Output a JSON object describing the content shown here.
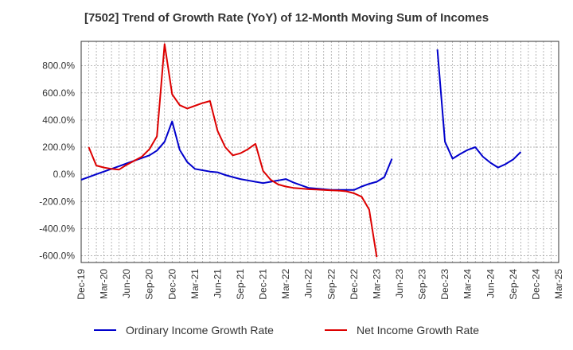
{
  "chart_data": {
    "type": "line",
    "title": "[7502]  Trend of Growth Rate (YoY) of 12-Month Moving Sum of Incomes",
    "ylim": [
      -650,
      980
    ],
    "yticks": [
      -600,
      -400,
      -200,
      0,
      200,
      400,
      600,
      800
    ],
    "ytick_labels": [
      "-600.0%",
      "-400.0%",
      "-200.0%",
      "0.0%",
      "200.0%",
      "400.0%",
      "600.0%",
      "800.0%"
    ],
    "xtick_labels": [
      "Dec-19",
      "Mar-20",
      "Jun-20",
      "Sep-20",
      "Dec-20",
      "Mar-21",
      "Jun-21",
      "Sep-21",
      "Dec-21",
      "Mar-22",
      "Jun-22",
      "Sep-22",
      "Dec-22",
      "Mar-23",
      "Jun-23",
      "Sep-23",
      "Dec-23",
      "Mar-24",
      "Jun-24",
      "Sep-24",
      "Dec-24",
      "Mar-25"
    ],
    "grid": true,
    "legend_position": "bottom",
    "series": [
      {
        "name": "Ordinary Income Growth Rate",
        "color": "#0000cc",
        "points": [
          [
            "Dec-19",
            -40
          ],
          [
            "Jan-20",
            -20
          ],
          [
            "Feb-20",
            0
          ],
          [
            "Mar-20",
            20
          ],
          [
            "Apr-20",
            40
          ],
          [
            "May-20",
            60
          ],
          [
            "Jun-20",
            80
          ],
          [
            "Jul-20",
            100
          ],
          [
            "Aug-20",
            120
          ],
          [
            "Sep-20",
            140
          ],
          [
            "Oct-20",
            175
          ],
          [
            "Nov-20",
            240
          ],
          [
            "Dec-20",
            390
          ],
          [
            "Jan-21",
            180
          ],
          [
            "Feb-21",
            90
          ],
          [
            "Mar-21",
            40
          ],
          [
            "Apr-21",
            30
          ],
          [
            "May-21",
            20
          ],
          [
            "Jun-21",
            15
          ],
          [
            "Jul-21",
            -5
          ],
          [
            "Aug-21",
            -20
          ],
          [
            "Sep-21",
            -35
          ],
          [
            "Oct-21",
            -45
          ],
          [
            "Nov-21",
            -55
          ],
          [
            "Dec-21",
            -65
          ],
          [
            "Jan-22",
            -55
          ],
          [
            "Feb-22",
            -45
          ],
          [
            "Mar-22",
            -35
          ],
          [
            "Apr-22",
            -60
          ],
          [
            "May-22",
            -80
          ],
          [
            "Jun-22",
            -100
          ],
          [
            "Jul-22",
            -105
          ],
          [
            "Aug-22",
            -110
          ],
          [
            "Sep-22",
            -115
          ],
          [
            "Oct-22",
            -115
          ],
          [
            "Nov-22",
            -115
          ],
          [
            "Dec-22",
            -115
          ],
          [
            "Jan-23",
            -90
          ],
          [
            "Feb-23",
            -70
          ],
          [
            "Mar-23",
            -55
          ],
          [
            "Apr-23",
            -20
          ],
          [
            "May-23",
            115
          ],
          [
            "Nov-23",
            920
          ],
          [
            "Dec-23",
            240
          ],
          [
            "Jan-24",
            115
          ],
          [
            "Feb-24",
            150
          ],
          [
            "Mar-24",
            180
          ],
          [
            "Apr-24",
            200
          ],
          [
            "May-24",
            130
          ],
          [
            "Jun-24",
            85
          ],
          [
            "Jul-24",
            50
          ],
          [
            "Aug-24",
            75
          ],
          [
            "Sep-24",
            110
          ],
          [
            "Oct-24",
            165
          ]
        ]
      },
      {
        "name": "Net Income Growth Rate",
        "color": "#dd0000",
        "points": [
          [
            "Jan-20",
            200
          ],
          [
            "Feb-20",
            65
          ],
          [
            "Mar-20",
            50
          ],
          [
            "Apr-20",
            40
          ],
          [
            "May-20",
            35
          ],
          [
            "Jun-20",
            70
          ],
          [
            "Jul-20",
            100
          ],
          [
            "Aug-20",
            130
          ],
          [
            "Sep-20",
            185
          ],
          [
            "Oct-20",
            280
          ],
          [
            "Nov-20",
            960
          ],
          [
            "Dec-20",
            590
          ],
          [
            "Jan-21",
            510
          ],
          [
            "Feb-21",
            485
          ],
          [
            "Mar-21",
            505
          ],
          [
            "Apr-21",
            525
          ],
          [
            "May-21",
            540
          ],
          [
            "Jun-21",
            320
          ],
          [
            "Jul-21",
            200
          ],
          [
            "Aug-21",
            140
          ],
          [
            "Sep-21",
            155
          ],
          [
            "Oct-21",
            185
          ],
          [
            "Nov-21",
            225
          ],
          [
            "Dec-21",
            25
          ],
          [
            "Jan-22",
            -40
          ],
          [
            "Feb-22",
            -75
          ],
          [
            "Mar-22",
            -90
          ],
          [
            "Apr-22",
            -100
          ],
          [
            "May-22",
            -105
          ],
          [
            "Jun-22",
            -110
          ],
          [
            "Jul-22",
            -112
          ],
          [
            "Aug-22",
            -115
          ],
          [
            "Sep-22",
            -118
          ],
          [
            "Oct-22",
            -120
          ],
          [
            "Nov-22",
            -125
          ],
          [
            "Dec-22",
            -140
          ],
          [
            "Jan-23",
            -165
          ],
          [
            "Feb-23",
            -260
          ],
          [
            "Mar-23",
            -610
          ]
        ]
      }
    ]
  }
}
